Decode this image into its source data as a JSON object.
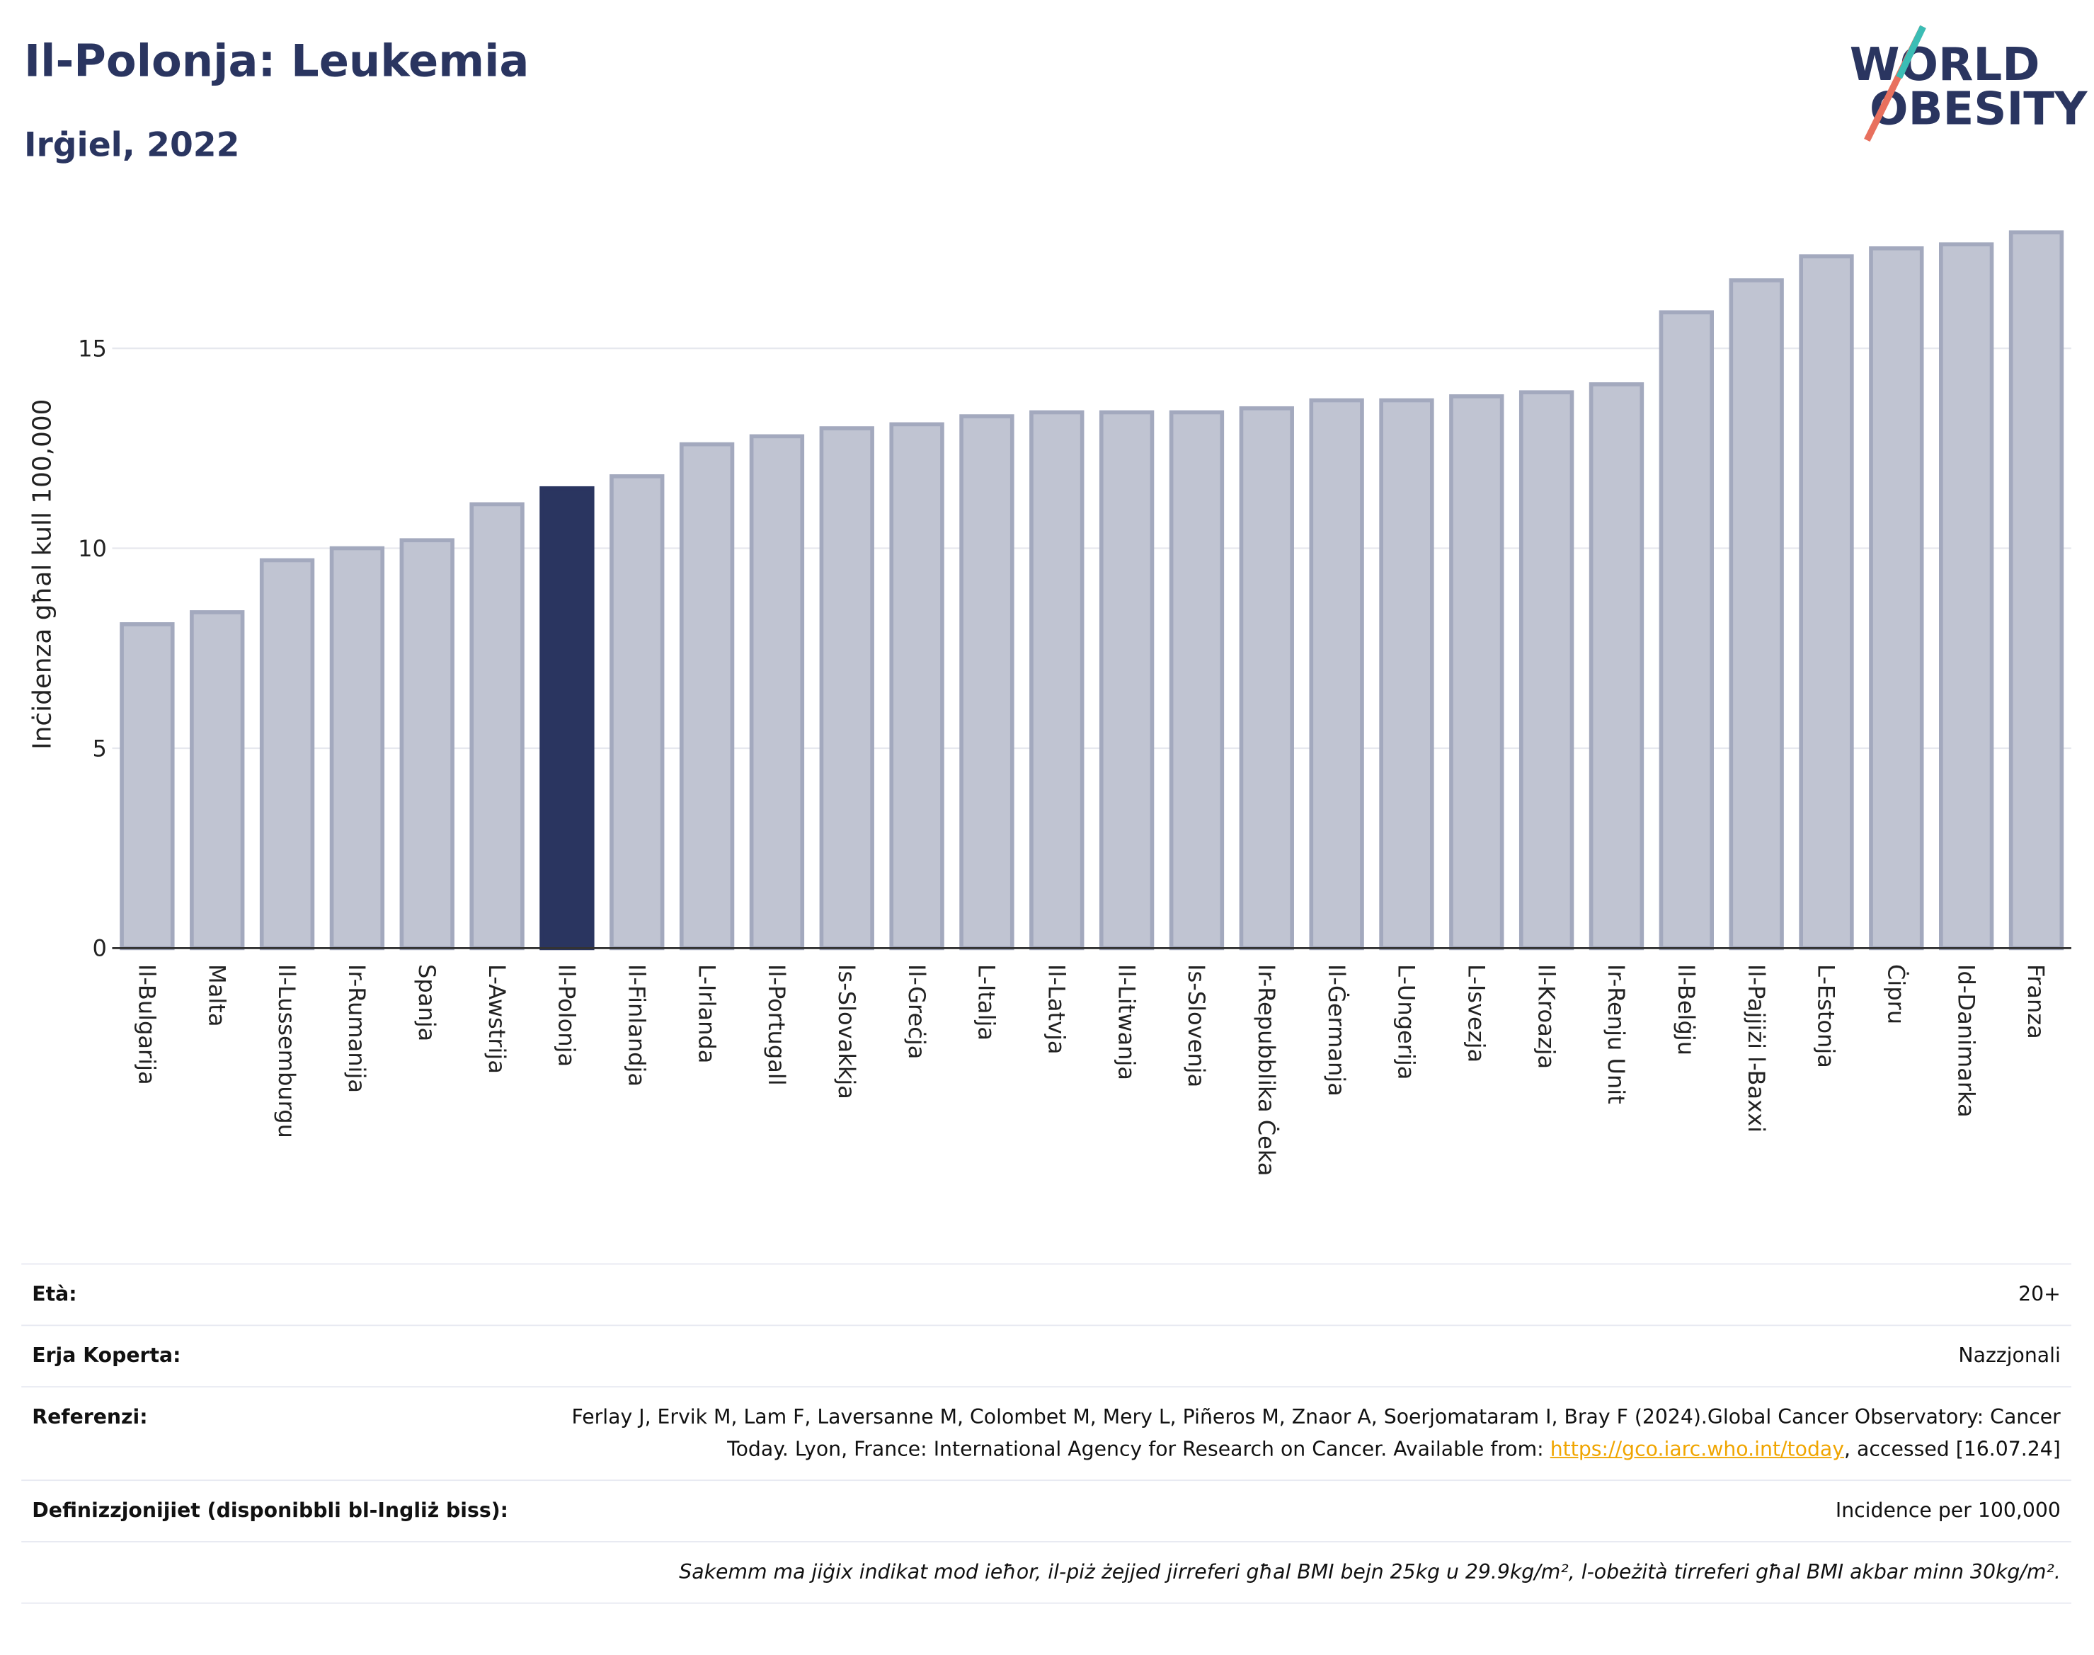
{
  "chart_data": {
    "type": "bar",
    "title": "Il-Polonja: Leukemia",
    "subtitle": "Irġiel, 2022",
    "y_label": "Inċidenza għal kull 100,000",
    "categories": [
      "Il-Bulgarija",
      "Malta",
      "Il-Lussemburgu",
      "Ir-Rumanija",
      "Spanja",
      "L-Awstrija",
      "Il-Polonja",
      "Il-Finlandja",
      "L-Irlanda",
      "Il-Portugall",
      "Is-Slovakkja",
      "Il-Greċja",
      "L-Italja",
      "Il-Latvja",
      "Il-Litwanja",
      "Is-Slovenja",
      "Ir-Repubblika Ċeka",
      "Il-Ġermanja",
      "L-Ungerija",
      "L-Isvezja",
      "Il-Kroazja",
      "Ir-Renju Unit",
      "Il-Belġju",
      "Il-Pajjiżi l-Baxxi",
      "L-Estonja",
      "Ċipru",
      "Id-Danimarka",
      "Franza"
    ],
    "values": [
      8.1,
      8.4,
      9.7,
      10.0,
      10.2,
      11.1,
      11.5,
      11.8,
      12.6,
      12.8,
      13.0,
      13.1,
      13.3,
      13.4,
      13.4,
      13.4,
      13.5,
      13.7,
      13.7,
      13.8,
      13.9,
      14.1,
      15.9,
      16.7,
      17.3,
      17.5,
      17.6,
      17.9
    ],
    "colors": [
      "#c0c4d2",
      "#c0c4d2",
      "#c0c4d2",
      "#c0c4d2",
      "#c0c4d2",
      "#c0c4d2",
      "#2a3560",
      "#c0c4d2",
      "#c0c4d2",
      "#c0c4d2",
      "#c0c4d2",
      "#c0c4d2",
      "#c0c4d2",
      "#c0c4d2",
      "#c0c4d2",
      "#c0c4d2",
      "#c0c4d2",
      "#c0c4d2",
      "#c0c4d2",
      "#c0c4d2",
      "#c0c4d2",
      "#c0c4d2",
      "#c0c4d2",
      "#c0c4d2",
      "#c0c4d2",
      "#c0c4d2",
      "#c0c4d2",
      "#c0c4d2"
    ],
    "ylim": [
      0,
      18
    ],
    "yticks": [
      0,
      5,
      10,
      15
    ],
    "grid": true
  },
  "logo": {
    "line1": "WORLD",
    "line2": "OBESITY"
  },
  "info": {
    "age": {
      "label": "Età:",
      "value": "20+"
    },
    "area": {
      "label": "Erja Koperta:",
      "value": "Nazzjonali"
    },
    "references": {
      "label": "Referenzi:",
      "text": "Ferlay J, Ervik M, Lam F, Laversanne M, Colombet M, Mery L, Piñeros M, Znaor A, Soerjomataram I, Bray F (2024).Global Cancer Observatory: Cancer Today. Lyon, France: International Agency for Research on Cancer. Available from: ",
      "link": "https://gco.iarc.who.int/today",
      "after": ", accessed [16.07.24]"
    },
    "definitions": {
      "label": "Definizzjonijiet (disponibbli bl-Ingliż biss):",
      "value": "Incidence per 100,000"
    },
    "note": "Sakemm ma jiġix indikat mod ieħor, il-piż żejjed jirreferi għal BMI bejn 25kg u 29.9kg/m², l-obeżità tirreferi għal BMI akbar minn 30kg/m²."
  }
}
